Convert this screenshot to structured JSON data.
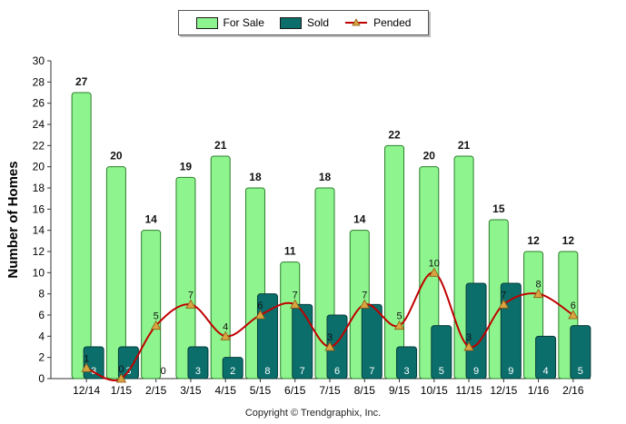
{
  "legend": {
    "for_sale": "For Sale",
    "sold": "Sold",
    "pended": "Pended"
  },
  "colors": {
    "for_sale_fill": "#8ef58e",
    "for_sale_stroke": "#2a7d2a",
    "sold_fill": "#0b6e6b",
    "sold_stroke": "#053c3a",
    "pended_line": "#c00000",
    "pended_marker": "#d9a441"
  },
  "footer": "Copyright © Trendgraphix, Inc.",
  "chart_data": {
    "type": "bar",
    "ylabel": "Number of Homes",
    "xlabel": "",
    "ylim": [
      0,
      30
    ],
    "yticks": [
      0,
      2,
      4,
      6,
      8,
      10,
      12,
      14,
      16,
      18,
      20,
      22,
      24,
      26,
      28,
      30
    ],
    "grid": false,
    "legend_position": "top-center",
    "categories": [
      "12/14",
      "1/15",
      "2/15",
      "3/15",
      "4/15",
      "5/15",
      "6/15",
      "7/15",
      "8/15",
      "9/15",
      "10/15",
      "11/15",
      "12/15",
      "1/16",
      "2/16"
    ],
    "series": [
      {
        "name": "For Sale",
        "kind": "bar",
        "values": [
          27,
          20,
          14,
          19,
          21,
          18,
          11,
          18,
          14,
          22,
          20,
          21,
          15,
          12,
          12
        ]
      },
      {
        "name": "Sold",
        "kind": "bar",
        "values": [
          3,
          3,
          0,
          3,
          2,
          8,
          7,
          6,
          7,
          3,
          5,
          9,
          9,
          4,
          5
        ]
      },
      {
        "name": "Pended",
        "kind": "line",
        "values": [
          1,
          0,
          5,
          7,
          4,
          6,
          7,
          3,
          7,
          5,
          10,
          3,
          7,
          8,
          6
        ]
      }
    ]
  }
}
